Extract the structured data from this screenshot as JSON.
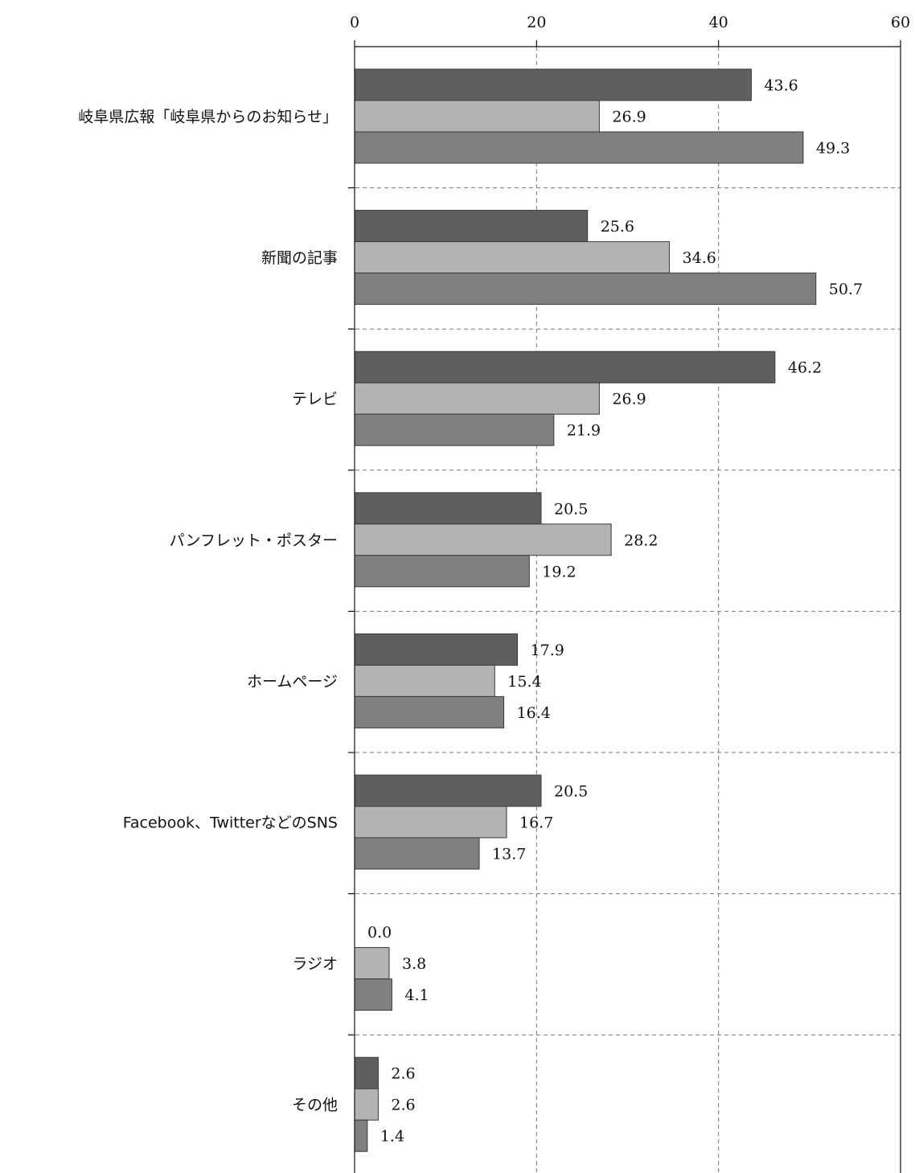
{
  "chart_data": {
    "type": "bar",
    "orientation": "horizontal",
    "categories": [
      "岐阜県広報「岐阜県からのお知らせ」",
      "新聞の記事",
      "テレビ",
      "パンフレット・ポスター",
      "ホームページ",
      "Facebook、TwitterなどのSNS",
      "ラジオ",
      "その他"
    ],
    "series": [
      {
        "color": "#5f5f5f",
        "values": [
          43.6,
          25.6,
          46.2,
          20.5,
          17.9,
          20.5,
          0.0,
          2.6
        ]
      },
      {
        "color": "#b3b3b3",
        "values": [
          26.9,
          34.6,
          26.9,
          28.2,
          15.4,
          16.7,
          3.8,
          2.6
        ]
      },
      {
        "color": "#808080",
        "values": [
          49.3,
          50.7,
          21.9,
          19.2,
          16.4,
          13.7,
          4.1,
          1.4
        ]
      }
    ],
    "value_labels": [
      [
        "43.6",
        "25.6",
        "46.2",
        "20.5",
        "17.9",
        "20.5",
        "0.0",
        "2.6"
      ],
      [
        "26.9",
        "34.6",
        "26.9",
        "28.2",
        "15.4",
        "16.7",
        "3.8",
        "2.6"
      ],
      [
        "49.3",
        "50.7",
        "21.9",
        "19.2",
        "16.4",
        "13.7",
        "4.1",
        "1.4"
      ]
    ],
    "xlim": [
      0,
      60
    ],
    "x_ticks": [
      0,
      20,
      40,
      60
    ],
    "x_tick_labels": [
      "0",
      "20",
      "40",
      "60"
    ],
    "x_axis_position": "top",
    "grid": true,
    "grid_style": "dashed",
    "legend": "none",
    "title": "",
    "xlabel": "",
    "ylabel": ""
  }
}
